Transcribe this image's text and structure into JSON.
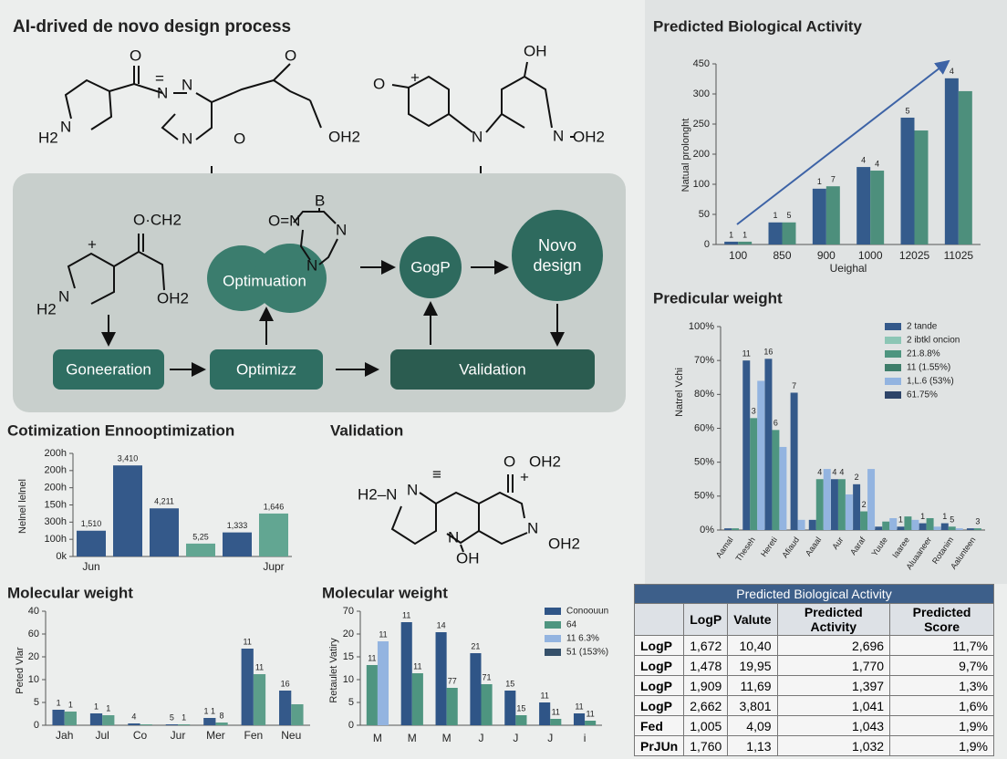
{
  "diagram": {
    "title": "AI-drived de novo design process",
    "validation_title": "Validation",
    "nodes": [
      "Goneeration",
      "Optimizz",
      "Validation",
      "Optimuation",
      "GogP",
      "Novo design"
    ],
    "molecules": [
      [
        "H2",
        "N",
        "O",
        "=",
        "N",
        "N",
        "N",
        "O",
        "O",
        "OH2"
      ],
      [
        "O",
        "+",
        "OH",
        "N",
        "N",
        "OH2"
      ],
      [
        "O·CH2",
        "+",
        "N",
        "H2",
        "OH2"
      ],
      [
        "O=N",
        "B",
        "N",
        "N"
      ],
      [
        "O",
        "OH2",
        "+",
        "H2–N",
        "N",
        "≡",
        "N",
        "OH",
        "N",
        "OH2"
      ]
    ]
  },
  "chart_data": [
    {
      "type": "bar",
      "title": "Predicted Biological Activity",
      "y_label": "Natual prolonght",
      "x_label": "Ueighal",
      "categories": [
        "100",
        "850",
        "900",
        "1000",
        "12025",
        "11025"
      ],
      "series": [
        {
          "color": "#345b8c",
          "values": [
            7,
            55,
            139,
            193,
            316,
            414
          ],
          "annotations": [
            "1",
            "1",
            "1",
            "4",
            "5",
            "4"
          ]
        },
        {
          "color": "#4d8f7c",
          "values": [
            7,
            55,
            145,
            184,
            284,
            382
          ],
          "annotations": [
            "1",
            "5",
            "7",
            "4",
            null,
            null
          ]
        }
      ],
      "ylim": [
        0,
        450
      ],
      "yticks": [
        0,
        {
          "value": 75,
          "label": "50"
        },
        {
          "value": 150,
          "label": "100"
        },
        {
          "value": 225,
          "label": "200"
        },
        {
          "value": 300,
          "label": "250"
        },
        {
          "value": 375,
          "label": "300"
        },
        450
      ]
    },
    {
      "type": "bar",
      "title": "Predicular weight",
      "y_label": "Natrel Vchi",
      "categories": [
        "Aamal",
        "Theseh",
        "Hereti",
        "Afiaud",
        "Aaaal",
        "Aur",
        "Aaraf",
        "Yuute",
        "Iaaree",
        "Aluaaneer",
        "Rotanim",
        "Aalunteen"
      ],
      "series": [
        {
          "name": "2 tande",
          "color": "#34598a",
          "values": [
            0.05,
            5.0,
            5.05,
            4.05,
            0.3,
            1.5,
            1.35,
            0.1,
            0.1,
            0.2,
            0.2,
            0.05
          ],
          "annotations": [
            null,
            "11",
            "16",
            "7",
            null,
            "4",
            "2",
            null,
            "1",
            "1",
            "1",
            null
          ]
        },
        {
          "name": "2 ibtkl oncion",
          "color": "#8cc6b5",
          "values": [
            null,
            null,
            null,
            null,
            null,
            null,
            null,
            null,
            null,
            null,
            null,
            null
          ]
        },
        {
          "name": "21.8.8%",
          "color": "#4e9580",
          "values": [
            0.05,
            3.3,
            2.95,
            null,
            1.5,
            1.5,
            0.55,
            0.25,
            0.4,
            0.35,
            0.1,
            0.05
          ],
          "annotations": [
            null,
            "3",
            "6",
            null,
            "4",
            "4",
            "2",
            null,
            null,
            null,
            "5",
            "3"
          ]
        },
        {
          "name": "11 (1.55%)",
          "color": "#3e7d6a",
          "values": [
            null,
            null,
            null,
            null,
            null,
            null,
            null,
            null,
            null,
            null,
            null,
            null
          ]
        },
        {
          "name": "1,L.6 (53%)",
          "color": "#93b4e0",
          "values": [
            null,
            4.4,
            2.45,
            0.3,
            1.8,
            1.05,
            1.8,
            0.35,
            0.3,
            0.1,
            0.05,
            null
          ]
        },
        {
          "name": "61.75%",
          "color": "#2d4468",
          "values": [
            null,
            null,
            null,
            null,
            null,
            null,
            null,
            null,
            null,
            null,
            null,
            null
          ]
        }
      ],
      "ylim": [
        0,
        6
      ],
      "yticks": [
        {
          "value": 0,
          "label": "0%"
        },
        {
          "value": 1,
          "label": "50%"
        },
        {
          "value": 2,
          "label": "50%"
        },
        {
          "value": 3,
          "label": "60%"
        },
        {
          "value": 4,
          "label": "80%"
        },
        {
          "value": 5,
          "label": "70%"
        },
        {
          "value": 6,
          "label": "100%"
        }
      ]
    },
    {
      "type": "bar",
      "title": "Cotimization Ennooptimization",
      "y_label": "Nelnel lelnel",
      "categories": [
        "Jun",
        null,
        null,
        null,
        null,
        "Jupr"
      ],
      "series": [
        {
          "color": "#34598a",
          "values": [
            1.5,
            5.3,
            2.8,
            null,
            1.4,
            null
          ],
          "annotations": [
            "1,510",
            "3,410",
            "4,211",
            null,
            "1,333",
            null
          ]
        },
        {
          "color": "#62a692",
          "values": [
            null,
            null,
            null,
            0.75,
            null,
            2.5
          ],
          "annotations": [
            null,
            null,
            null,
            "5,25",
            null,
            "1,646"
          ]
        }
      ],
      "ylim": [
        0,
        6
      ],
      "yticks": [
        {
          "value": 0,
          "label": "0k"
        },
        {
          "value": 1,
          "label": "100h"
        },
        {
          "value": 2,
          "label": "300h"
        },
        {
          "value": 3,
          "label": "150h"
        },
        {
          "value": 4,
          "label": "200h"
        },
        {
          "value": 5,
          "label": "200h"
        },
        {
          "value": 6,
          "label": "200h"
        }
      ]
    },
    {
      "type": "bar",
      "title": "Molecular weight",
      "y_label": "Peted Vlar",
      "categories": [
        "Jah",
        "Jul",
        "Co",
        "Jur",
        "Mer",
        "Fen",
        "Neu"
      ],
      "series": [
        {
          "color": "#34598a",
          "values": [
            0.68,
            0.52,
            0.08,
            0.04,
            0.32,
            3.36,
            1.52
          ],
          "annotations": [
            "1",
            "1",
            "4",
            "5",
            "1 1",
            "11",
            "16"
          ]
        },
        {
          "color": "#5c9e8a",
          "values": [
            0.6,
            0.44,
            0.04,
            0.04,
            0.12,
            2.24,
            0.92
          ],
          "annotations": [
            "1",
            "1",
            null,
            "1",
            "8",
            "11",
            null
          ]
        }
      ],
      "ylim": [
        0,
        5
      ],
      "yticks": [
        0,
        {
          "value": 1,
          "label": "5"
        },
        {
          "value": 2,
          "label": "10"
        },
        {
          "value": 3,
          "label": "20"
        },
        {
          "value": 4,
          "label": "60"
        },
        {
          "value": 5,
          "label": "40"
        }
      ]
    },
    {
      "type": "bar",
      "title": "Molecular weight",
      "y_label": "Retaulet Vatiry",
      "categories": [
        "M",
        "M",
        "M",
        "J",
        "J",
        "J",
        "i"
      ],
      "series": [
        {
          "name": "Conoouun",
          "color": "#2f5587",
          "values": [
            null,
            4.52,
            4.08,
            3.16,
            1.52,
            1.0,
            0.52
          ],
          "annotations": [
            null,
            "11",
            "14",
            "21",
            "15",
            "11",
            "11"
          ]
        },
        {
          "name": "64",
          "color": "#4e9580",
          "values": [
            2.64,
            2.28,
            1.64,
            1.8,
            0.44,
            0.28,
            0.2
          ],
          "annotations": [
            "11",
            "11",
            "77",
            "71",
            "15",
            "11",
            "11"
          ]
        },
        {
          "name": "11 6.3%",
          "color": "#93b4e0",
          "values": [
            3.68,
            null,
            null,
            null,
            null,
            null,
            null
          ],
          "annotations": [
            "11",
            null,
            null,
            null,
            null,
            null,
            null
          ]
        },
        {
          "name": "51 (153%)",
          "color": "#35506a",
          "values": [
            null,
            null,
            null,
            null,
            null,
            null,
            null
          ]
        }
      ],
      "ylim": [
        0,
        5
      ],
      "yticks": [
        0,
        {
          "value": 1,
          "label": "5"
        },
        {
          "value": 2,
          "label": "10"
        },
        {
          "value": 3,
          "label": "15"
        },
        {
          "value": 4,
          "label": "20"
        },
        {
          "value": 5,
          "label": "70"
        }
      ]
    }
  ],
  "table": {
    "title": "Predicted Biological Activity",
    "headers": [
      "LogP",
      "Valute",
      "Predicted Activity",
      "Predicted Score"
    ],
    "rows": [
      [
        "LogP",
        "1,672",
        "10,40",
        "2,696",
        "11,7%"
      ],
      [
        "LogP",
        "1,478",
        "19,95",
        "1,770",
        "9,7%"
      ],
      [
        "LogP",
        "1,909",
        "11,69",
        "1,397",
        "1,3%"
      ],
      [
        "LogP",
        "2,662",
        "3,801",
        "1,041",
        "1,6%"
      ],
      [
        "Fed",
        "1,005",
        "4,09",
        "1,043",
        "1,9%"
      ],
      [
        "PrJUn",
        "1,760",
        "1,13",
        "1,032",
        "1,9%"
      ]
    ]
  }
}
